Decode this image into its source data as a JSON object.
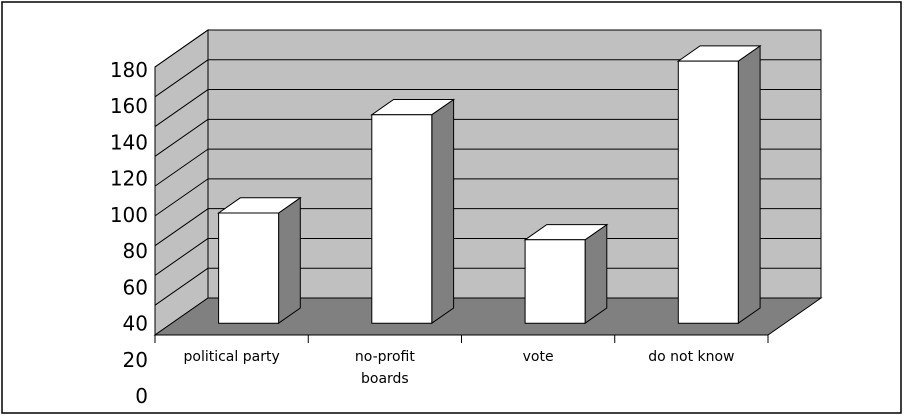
{
  "chart_data": {
    "type": "bar3d",
    "categories": [
      "political party",
      "no-profit boards",
      "vote",
      "do not know"
    ],
    "values": [
      74,
      140,
      56,
      176
    ],
    "color": "#ffffff",
    "ylim": [
      0,
      180
    ],
    "yticks": [
      0,
      20,
      40,
      60,
      80,
      100,
      120,
      140,
      160,
      180
    ],
    "grid": true
  }
}
